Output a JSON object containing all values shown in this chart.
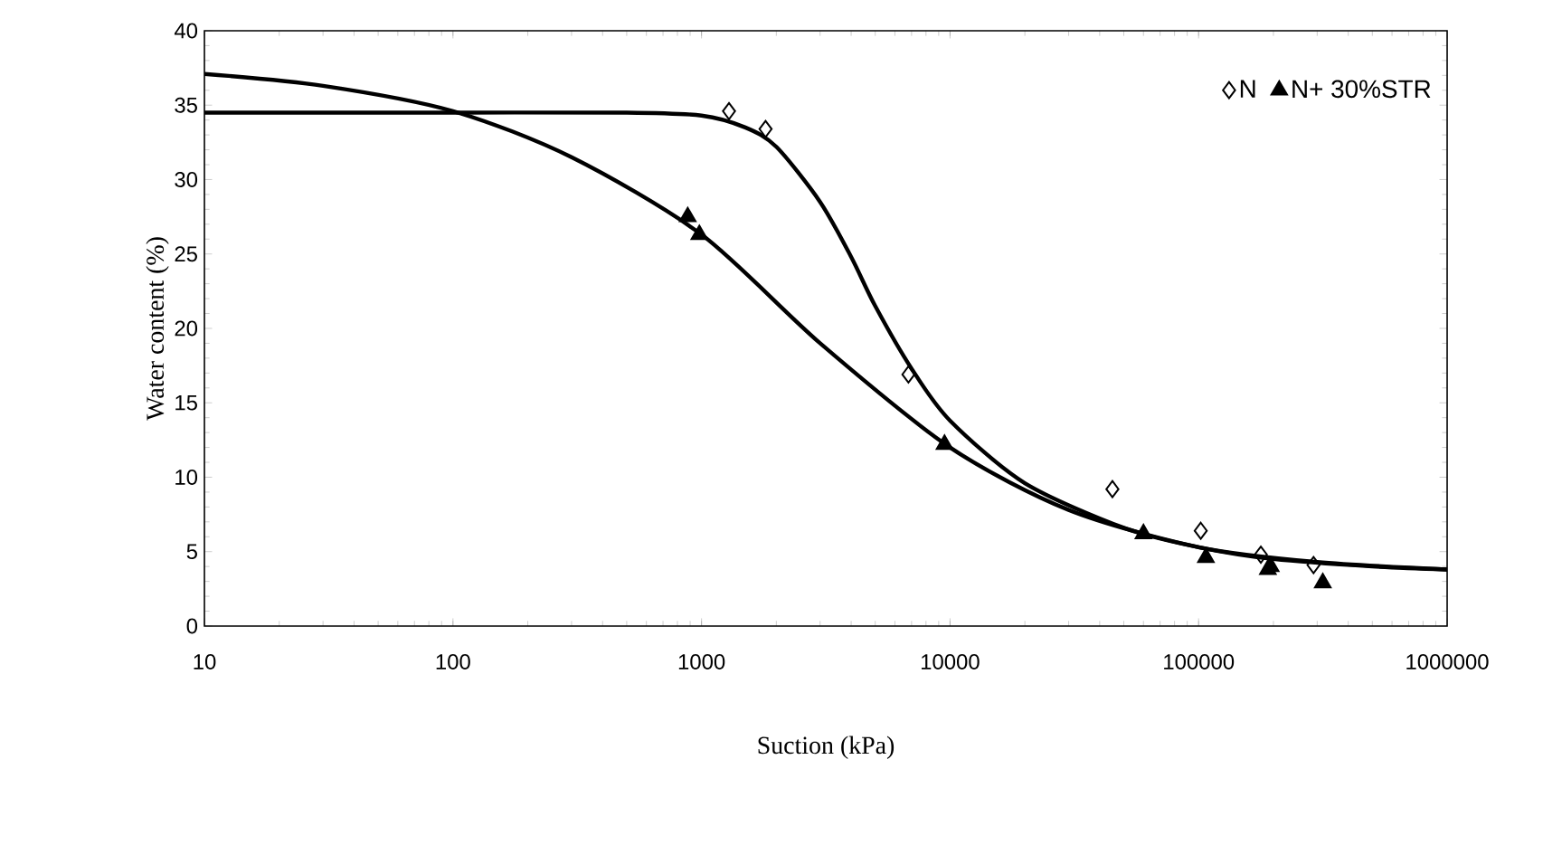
{
  "chart_data": {
    "type": "scatter",
    "xlabel": "Suction (kPa)",
    "ylabel": "Water content (%)",
    "log": "x",
    "xlim": [
      10,
      1000000
    ],
    "ylim": [
      0,
      40
    ],
    "xticks": [
      10,
      100,
      1000,
      10000,
      100000,
      1000000
    ],
    "yticks": [
      0,
      5,
      10,
      15,
      20,
      25,
      30,
      35,
      40
    ],
    "grid": false,
    "legend": "top right",
    "series": [
      {
        "name": "N",
        "marker": "diamond",
        "color": "#000000",
        "x": [
          1290,
          1810,
          6800,
          45000,
          102000,
          178000,
          290000
        ],
        "values": [
          34.6,
          33.4,
          16.9,
          9.2,
          6.4,
          4.8,
          4.1
        ]
      },
      {
        "name": "N+ 30%STR",
        "marker": "triangle",
        "color": "#000000",
        "x": [
          880,
          980,
          9500,
          60000,
          107000,
          190000,
          195000,
          316000
        ],
        "values": [
          27.5,
          26.3,
          12.2,
          6.2,
          4.6,
          3.8,
          4.0,
          2.9
        ]
      },
      {
        "type": "line",
        "marker": "none",
        "color": "#000000",
        "x": [
          10,
          100,
          500,
          1000,
          1500,
          2000,
          3000,
          4000,
          5000,
          7000,
          10000,
          20000,
          50000,
          100000,
          200000,
          500000,
          1000000
        ],
        "values": [
          34.5,
          34.5,
          34.5,
          34.3,
          33.5,
          32.2,
          28.5,
          24.8,
          21.5,
          17.3,
          13.8,
          9.6,
          6.6,
          5.3,
          4.5,
          4.0,
          3.8
        ]
      },
      {
        "type": "line",
        "marker": "none",
        "color": "#000000",
        "x": [
          10,
          30,
          100,
          300,
          1000,
          3000,
          10000,
          30000,
          100000,
          300000,
          1000000
        ],
        "values": [
          37.1,
          36.3,
          34.6,
          31.5,
          26.3,
          19.0,
          12.0,
          7.8,
          5.3,
          4.3,
          3.8
        ]
      }
    ]
  }
}
